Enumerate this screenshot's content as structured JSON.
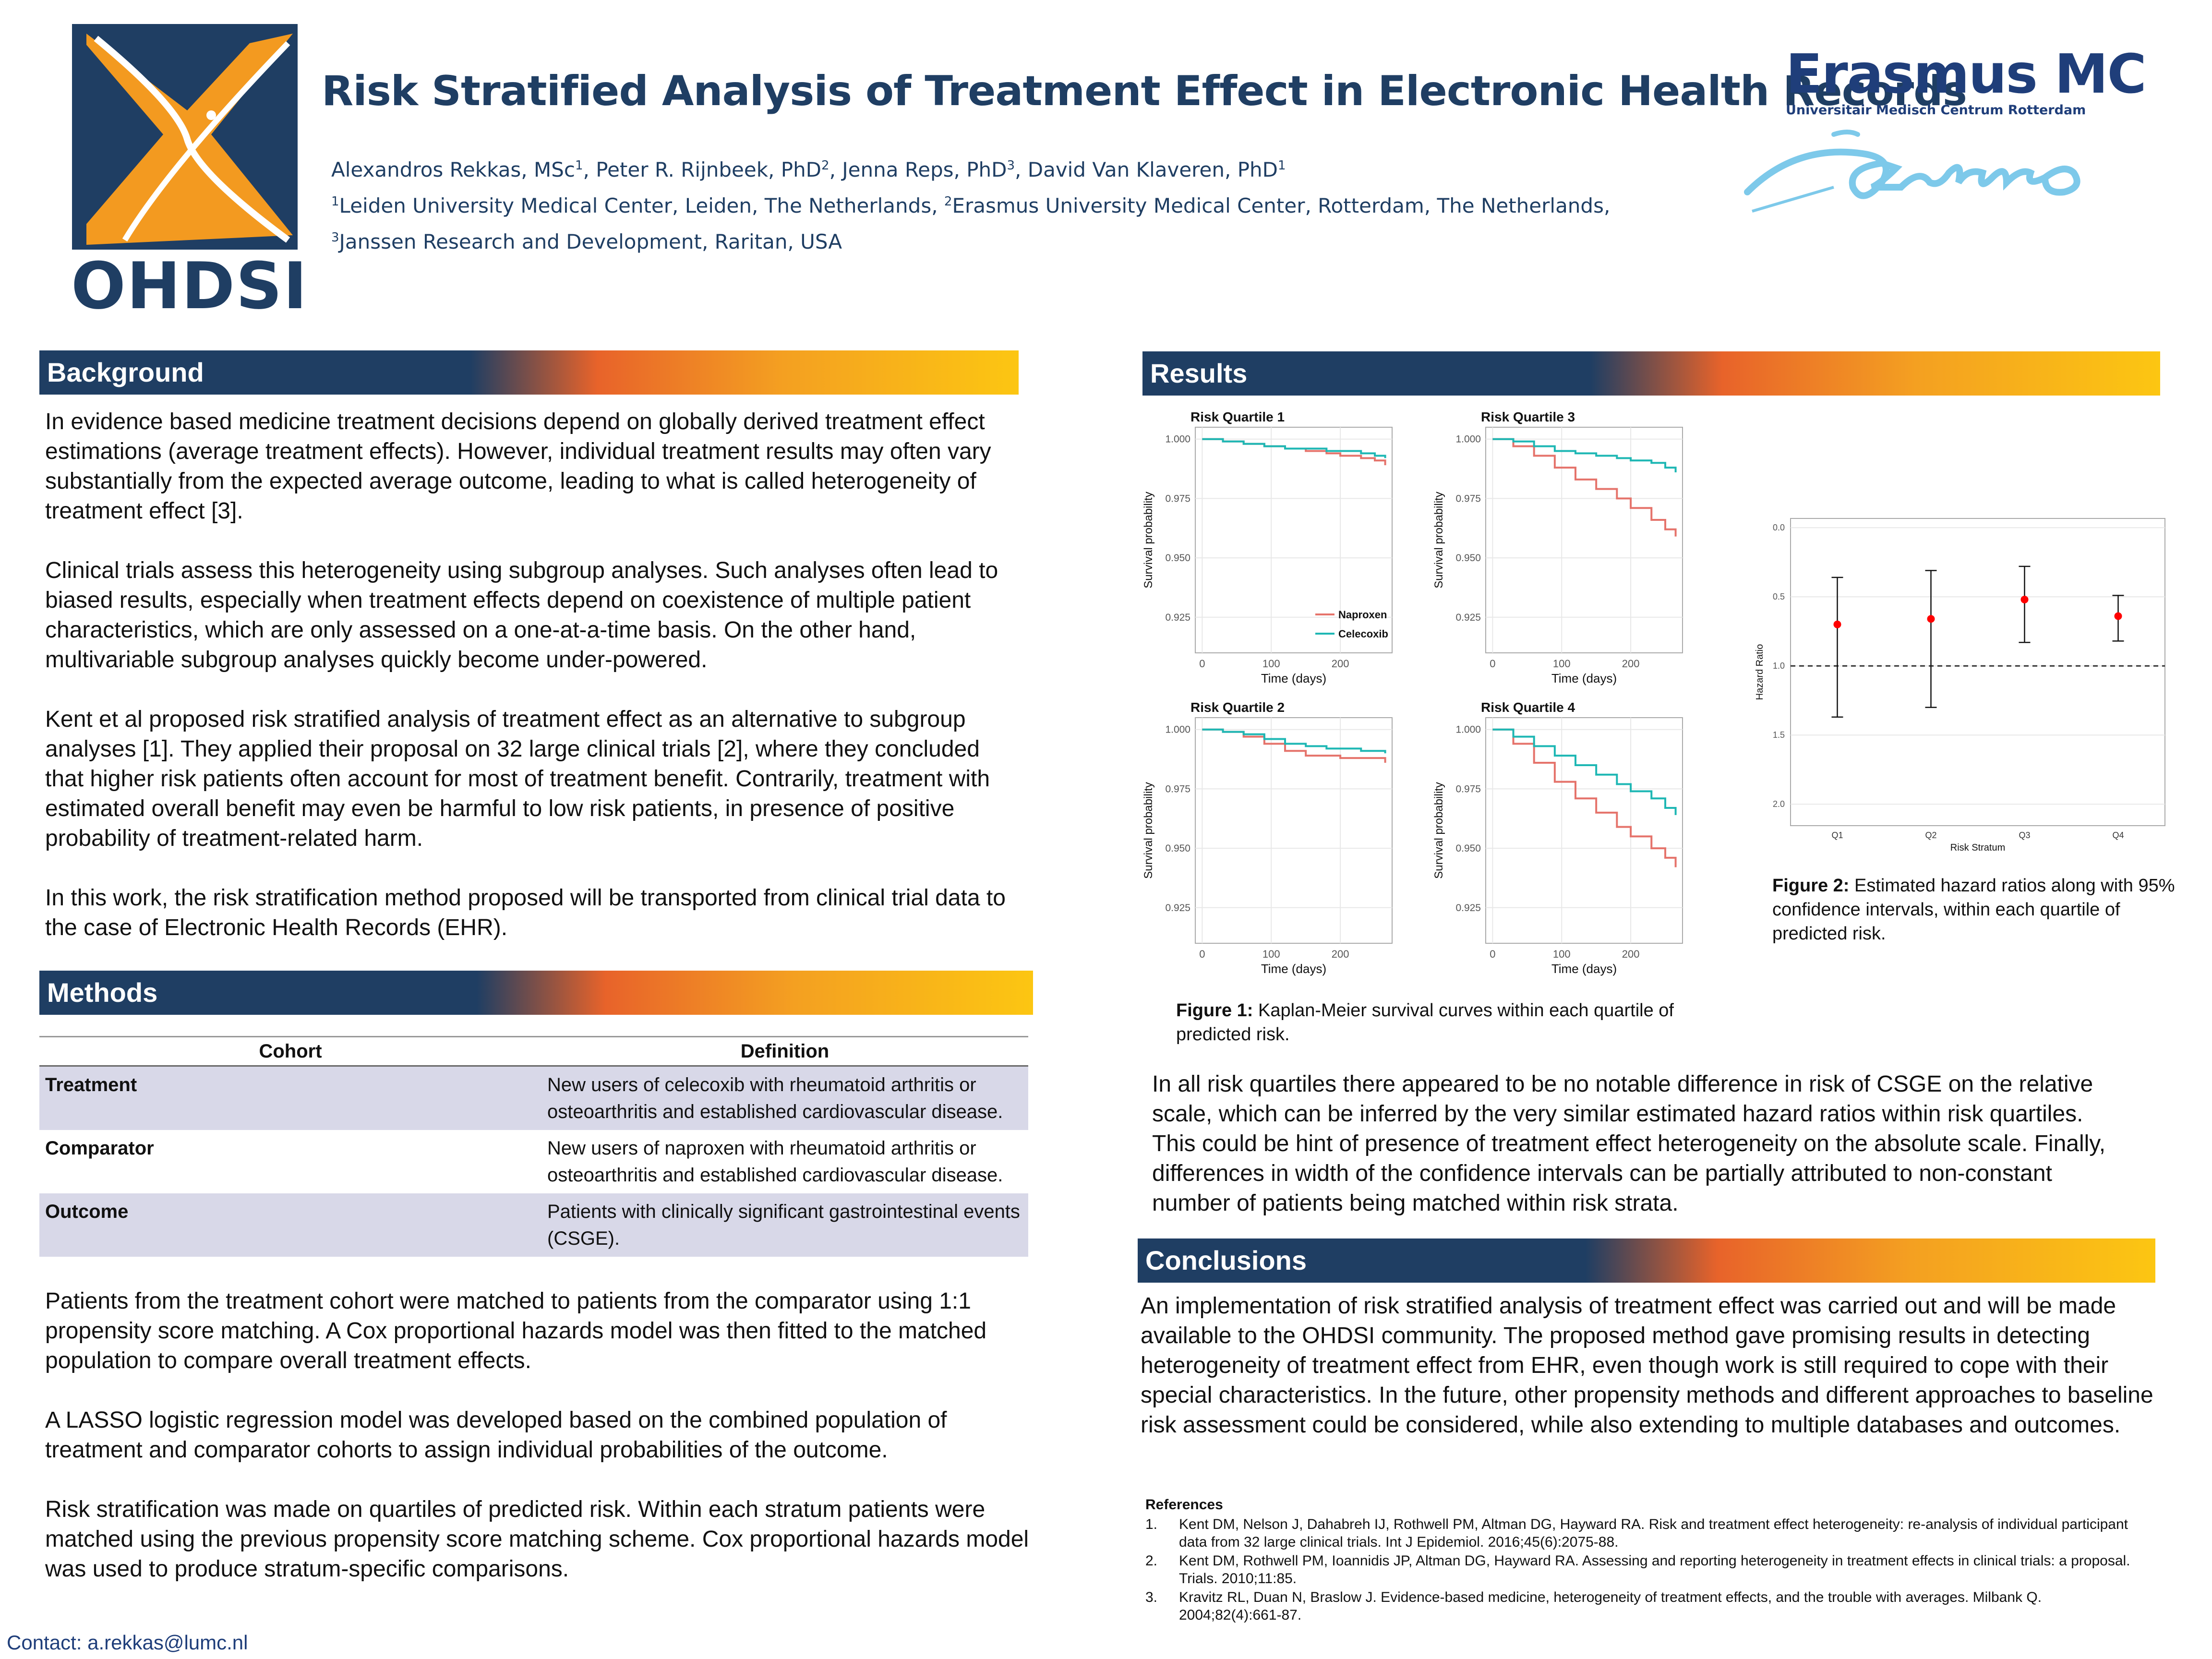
{
  "header": {
    "logo_text": "OHDSI",
    "title": "Risk Stratified Analysis of Treatment Effect in Electronic Health Records",
    "authors": [
      {
        "name": "Alexandros Rekkas, MSc",
        "sup": "1"
      },
      {
        "name": "Peter R. Rijnbeek, PhD",
        "sup": "2"
      },
      {
        "name": "Jenna Reps, PhD",
        "sup": "3"
      },
      {
        "name": "David Van Klaveren, PhD",
        "sup": "1"
      }
    ],
    "affil_1_sup": "1",
    "affil_1": "Leiden University Medical Center, Leiden, The Netherlands, ",
    "affil_2_sup": "2",
    "affil_2": "Erasmus University Medical Center, Rotterdam, The Netherlands,",
    "affil_3_sup": "3",
    "affil_3": "Janssen Research and Development, Raritan, USA",
    "erasmus_name": "Erasmus MC",
    "erasmus_sub": "Universitair Medisch Centrum Rotterdam"
  },
  "background": {
    "heading": "Background",
    "paragraphs": [
      "In evidence based medicine treatment decisions depend on globally derived treatment effect estimations (average treatment effects). However, individual treatment results may often vary substantially from the expected average outcome, leading to what is called heterogeneity of treatment effect [3].",
      "Clinical trials assess this heterogeneity using subgroup analyses. Such analyses often lead to biased results, especially when treatment effects depend on coexistence of multiple patient characteristics, which are only assessed on a one-at-a-time basis. On the other hand, multivariable subgroup analyses quickly become under-powered.",
      "Kent et al proposed risk stratified analysis of treatment effect as an alternative to subgroup analyses [1].  They applied their proposal on 32 large clinical trials [2], where they concluded that higher risk patients often account for most of treatment benefit. Contrarily, treatment with estimated overall benefit may even be harmful to low risk patients, in presence of positive probability of treatment-related harm.",
      "In this work, the risk stratification method proposed will be transported from clinical trial data to the case of Electronic Health Records (EHR)."
    ]
  },
  "methods": {
    "heading": "Methods",
    "table": {
      "headers": [
        "Cohort",
        "Definition"
      ],
      "rows": [
        {
          "cohort": "Treatment",
          "definition": "New users of celecoxib with rheumatoid arthritis or osteoarthritis and established cardiovascular disease."
        },
        {
          "cohort": "Comparator",
          "definition": "New users of naproxen with rheumatoid arthritis or osteoarthritis and established cardiovascular disease."
        },
        {
          "cohort": "Outcome",
          "definition": "Patients with clinically significant gastrointestinal events (CSGE)."
        }
      ]
    },
    "paragraphs": [
      "Patients from the treatment cohort were matched to patients from the comparator using 1:1 propensity score matching. A Cox proportional hazards model was then fitted to the matched population to compare overall treatment effects.",
      "A LASSO logistic regression model was developed based on the combined population of treatment and comparator cohorts to assign individual probabilities of the outcome.",
      "Risk stratification was made on quartiles of predicted risk. Within each stratum patients were matched using the previous propensity score matching scheme. Cox proportional hazards model was used to produce stratum-specific comparisons."
    ],
    "contact": "Contact:  a.rekkas@lumc.nl"
  },
  "results": {
    "heading": "Results",
    "fig1_caption_bold": "Figure 1:",
    "fig1_caption": " Kaplan-Meier survival curves within each quartile of predicted risk.",
    "fig2_caption_bold": "Figure 2:",
    "fig2_caption": " Estimated hazard ratios along with 95% confidence intervals, within each quartile of predicted risk.",
    "paragraph": "In all risk quartiles there appeared to be no notable difference in risk of CSGE on the relative scale, which can be inferred by the very similar estimated hazard ratios within risk quartiles. This could be hint of presence of treatment effect heterogeneity on the absolute scale. Finally, differences in width of the confidence intervals can be partially attributed to non-constant number of patients being matched within risk strata."
  },
  "conclusions": {
    "heading": "Conclusions",
    "paragraph": "An implementation of risk stratified analysis of treatment effect was carried out and will be made available to the OHDSI community. The proposed method gave promising results in detecting heterogeneity of treatment effect from EHR, even though work is still required to cope with their special characteristics. In the future, other propensity methods and different approaches to baseline risk assessment could be considered, while also extending to multiple databases and outcomes."
  },
  "references": {
    "heading": "References",
    "items": [
      {
        "num": "1.",
        "text": "Kent DM, Nelson J, Dahabreh IJ, Rothwell PM, Altman DG, Hayward RA. Risk and treatment effect heterogeneity: re-analysis of individual participant data from 32 large clinical trials. Int J Epidemiol.  2016;45(6):2075-88."
      },
      {
        "num": "2.",
        "text": "Kent DM, Rothwell PM, Ioannidis JP, Altman DG, Hayward RA. Assessing and reporting heterogeneity in treatment effects in clinical trials: a proposal. Trials. 2010;11:85."
      },
      {
        "num": "3.",
        "text": "Kravitz RL, Duan N, Braslow J. Evidence-based medicine, heterogeneity of treatment effects, and the trouble with averages.  Milbank Q. 2004;82(4):661-87."
      }
    ]
  },
  "chart_data": [
    {
      "type": "line",
      "chart": "kaplan-meier",
      "panels": [
        {
          "title": "Risk Quartile 1",
          "series": [
            {
              "name": "Naproxen",
              "color": "#e5736b",
              "x": [
                0,
                30,
                60,
                90,
                120,
                150,
                180,
                200,
                230,
                250,
                265
              ],
              "y": [
                1.0,
                0.999,
                0.998,
                0.997,
                0.996,
                0.995,
                0.994,
                0.993,
                0.992,
                0.991,
                0.989
              ]
            },
            {
              "name": "Celecoxib",
              "color": "#1eb7b4",
              "x": [
                0,
                30,
                60,
                90,
                120,
                150,
                180,
                200,
                230,
                250,
                265
              ],
              "y": [
                1.0,
                0.999,
                0.998,
                0.997,
                0.996,
                0.996,
                0.995,
                0.995,
                0.994,
                0.993,
                0.992
              ]
            }
          ]
        },
        {
          "title": "Risk Quartile 3",
          "series": [
            {
              "name": "Naproxen",
              "color": "#e5736b",
              "x": [
                0,
                30,
                60,
                90,
                120,
                150,
                180,
                200,
                230,
                250,
                265
              ],
              "y": [
                1.0,
                0.997,
                0.993,
                0.988,
                0.983,
                0.979,
                0.975,
                0.971,
                0.966,
                0.962,
                0.959
              ]
            },
            {
              "name": "Celecoxib",
              "color": "#1eb7b4",
              "x": [
                0,
                30,
                60,
                90,
                120,
                150,
                180,
                200,
                230,
                250,
                265
              ],
              "y": [
                1.0,
                0.999,
                0.997,
                0.995,
                0.994,
                0.993,
                0.992,
                0.991,
                0.99,
                0.988,
                0.986
              ]
            }
          ]
        },
        {
          "title": "Risk Quartile 2",
          "series": [
            {
              "name": "Naproxen",
              "color": "#e5736b",
              "x": [
                0,
                30,
                60,
                90,
                120,
                150,
                180,
                200,
                230,
                250,
                265
              ],
              "y": [
                1.0,
                0.999,
                0.997,
                0.994,
                0.991,
                0.989,
                0.989,
                0.988,
                0.988,
                0.988,
                0.986
              ]
            },
            {
              "name": "Celecoxib",
              "color": "#1eb7b4",
              "x": [
                0,
                30,
                60,
                90,
                120,
                150,
                180,
                200,
                230,
                250,
                265
              ],
              "y": [
                1.0,
                0.999,
                0.998,
                0.996,
                0.994,
                0.993,
                0.992,
                0.992,
                0.991,
                0.991,
                0.99
              ]
            }
          ]
        },
        {
          "title": "Risk Quartile 4",
          "series": [
            {
              "name": "Naproxen",
              "color": "#e5736b",
              "x": [
                0,
                30,
                60,
                90,
                120,
                150,
                180,
                200,
                230,
                250,
                265
              ],
              "y": [
                1.0,
                0.994,
                0.986,
                0.978,
                0.971,
                0.965,
                0.959,
                0.955,
                0.95,
                0.946,
                0.942
              ]
            },
            {
              "name": "Celecoxib",
              "color": "#1eb7b4",
              "x": [
                0,
                30,
                60,
                90,
                120,
                150,
                180,
                200,
                230,
                250,
                265
              ],
              "y": [
                1.0,
                0.997,
                0.993,
                0.989,
                0.985,
                0.981,
                0.977,
                0.974,
                0.971,
                0.967,
                0.964
              ]
            }
          ]
        }
      ],
      "xlabel": "Time (days)",
      "ylabel": "Survival probability",
      "xticks": [
        0,
        100,
        200
      ],
      "yticks": [
        "1.000",
        "0.975",
        "0.950",
        "0.925"
      ],
      "xlim": [
        -10,
        275
      ],
      "ylim": [
        0.91,
        1.005
      ],
      "legend": [
        "Naproxen",
        "Celecoxib"
      ],
      "legend_position": "bottom-right of first panel",
      "grid": true
    },
    {
      "type": "scatter",
      "chart": "hazard-ratio-forest",
      "categories": [
        "Q1",
        "Q2",
        "Q3",
        "Q4"
      ],
      "values": [
        0.7,
        0.66,
        0.52,
        0.64
      ],
      "ci_lower": [
        0.36,
        0.31,
        0.28,
        0.49
      ],
      "ci_upper": [
        1.37,
        1.3,
        0.83,
        0.82
      ],
      "point_color": "#ff0000",
      "reference_line": 1.0,
      "xlabel": "Risk Stratum",
      "ylabel": "Hazard Ratio",
      "yticks": [
        "0.0",
        "0.5",
        "1.0",
        "1.5",
        "2.0"
      ],
      "ylim": [
        0.0,
        2.0
      ],
      "y_inverted": true,
      "grid": true
    }
  ]
}
